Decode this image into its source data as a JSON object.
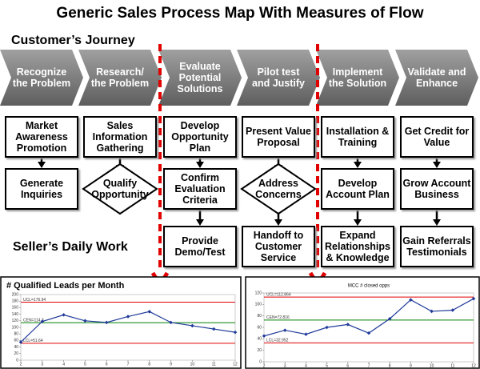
{
  "title": "Generic Sales Process Map With Measures of Flow",
  "journey_label": "Customer’s Journey",
  "work_label": "Seller’s Daily Work",
  "columns": [
    {
      "stage": "Recognize the Problem",
      "steps": [
        {
          "text": "Market Awareness Promotion",
          "shape": "box"
        },
        {
          "text": "Generate Inquiries",
          "shape": "box"
        }
      ]
    },
    {
      "stage": "Research/ the Problem",
      "steps": [
        {
          "text": "Sales Information Gathering",
          "shape": "box"
        },
        {
          "text": "Qualify Opportunity",
          "shape": "diamond"
        }
      ]
    },
    {
      "stage": "Evaluate Potential Solutions",
      "steps": [
        {
          "text": "Develop Opportunity Plan",
          "shape": "box"
        },
        {
          "text": "Confirm Evaluation Criteria",
          "shape": "box"
        },
        {
          "text": "Provide Demo/Test",
          "shape": "box"
        }
      ]
    },
    {
      "stage": "Pilot test and Justify",
      "steps": [
        {
          "text": "Present Value Proposal",
          "shape": "box"
        },
        {
          "text": "Address Concerns",
          "shape": "diamond"
        },
        {
          "text": "Handoff to Customer Service",
          "shape": "box"
        }
      ]
    },
    {
      "stage": "Implement the Solution",
      "steps": [
        {
          "text": "Installation & Training",
          "shape": "box"
        },
        {
          "text": "Develop Account Plan",
          "shape": "box"
        },
        {
          "text": "Expand Relationships & Knowledge",
          "shape": "box"
        }
      ]
    },
    {
      "stage": "Validate and Enhance",
      "steps": [
        {
          "text": "Get Credit for Value",
          "shape": "box"
        },
        {
          "text": "Grow Account Business",
          "shape": "box"
        },
        {
          "text": "Gain Referrals Testimonials",
          "shape": "box"
        }
      ]
    }
  ],
  "chart_data": [
    {
      "type": "line",
      "title": "# Qualified Leads per Month",
      "color": "#1f3a99",
      "x": [
        2,
        3,
        4,
        5,
        6,
        7,
        8,
        9,
        10,
        11,
        12
      ],
      "values": [
        55,
        118,
        138,
        120,
        115,
        133,
        148,
        115,
        105,
        95,
        85
      ],
      "xlim": [
        2,
        12
      ],
      "xticks": [
        2,
        3,
        4,
        5,
        6,
        7,
        8,
        9,
        10,
        11,
        12
      ],
      "ylim": [
        0,
        200
      ],
      "yticks": [
        0,
        20,
        40,
        60,
        80,
        100,
        120,
        140,
        160,
        180,
        200
      ],
      "control_lines": [
        {
          "value": 176.94,
          "label": "UCL=176.94",
          "color": "#e00000"
        },
        {
          "value": 114.3,
          "label": "CEN=114.3",
          "color": "#008000"
        },
        {
          "value": 51.64,
          "label": "LCL=51.64",
          "color": "#e00000"
        }
      ]
    },
    {
      "type": "line",
      "title": "MCC # closed opps",
      "color": "#1f3a99",
      "x": [
        2,
        3,
        4,
        5,
        6,
        7,
        8,
        9,
        10,
        11,
        12
      ],
      "values": [
        45,
        55,
        48,
        60,
        65,
        50,
        75,
        108,
        88,
        90,
        110
      ],
      "xlim": [
        2,
        12
      ],
      "xticks": [
        2,
        3,
        4,
        5,
        6,
        7,
        8,
        9,
        10,
        11,
        12
      ],
      "ylim": [
        0,
        120
      ],
      "yticks": [
        0,
        20,
        40,
        60,
        80,
        100,
        120
      ],
      "control_lines": [
        {
          "value": 112.864,
          "label": "UCL=112.864",
          "color": "#e00000"
        },
        {
          "value": 72.816,
          "label": "CEN=72.816",
          "color": "#008000"
        },
        {
          "value": 32.952,
          "label": "LCL=32.952",
          "color": "#e00000"
        }
      ]
    }
  ]
}
